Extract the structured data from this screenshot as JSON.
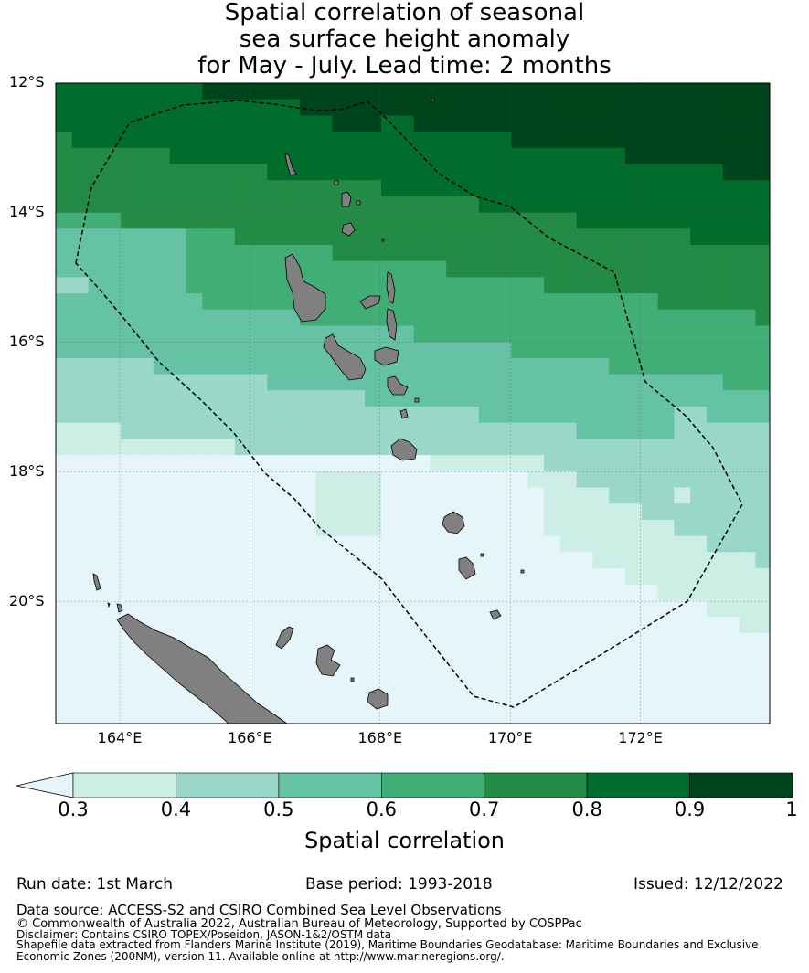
{
  "title": {
    "line1": "Spatial correlation of seasonal",
    "line2": "sea surface height anomaly",
    "line3": "for May - July. Lead time: 2 months"
  },
  "map": {
    "lat_labels": [
      "12°S",
      "14°S",
      "16°S",
      "18°S",
      "20°S"
    ],
    "lon_labels": [
      "164°E",
      "166°E",
      "168°E",
      "170°E",
      "172°E"
    ],
    "extent": {
      "lon": [
        163.0,
        174.0
      ],
      "lat": [
        -21.9,
        -12.0
      ]
    },
    "land_color": "#808080",
    "eez_line": "dashed black"
  },
  "colorbar": {
    "label": "Spatial correlation",
    "ticks": [
      "0.3",
      "0.4",
      "0.5",
      "0.6",
      "0.7",
      "0.8",
      "0.9",
      "1"
    ],
    "extend_color": "#e5f5f9",
    "colors": [
      "#cceee4",
      "#99d8c9",
      "#66c2a4",
      "#41ae76",
      "#238b45",
      "#006d2c",
      "#00441b"
    ]
  },
  "info": {
    "run_date": "Run date: 1st March",
    "base_period": "Base period: 1993-2018",
    "issued": "Issued: 12/12/2022"
  },
  "footer": {
    "data_source": "Data source: ACCESS-S2 and CSIRO Combined Sea Level Observations",
    "copyright": "© Commonwealth of Australia 2022, Australian Bureau of Meteorology, Supported by COSPPac",
    "disclaimer": "Disclaimer: Contains CSIRO TOPEX/Poseidon, JASON-1&2/OSTM data",
    "shapefile": "Shapefile data extracted from Flanders Marine Institute (2019), Maritime Boundaries Geodatabase: Maritime Boundaries and Exclusive Economic Zones (200NM), version 11. Available online at http://www.marineregions.org/."
  }
}
